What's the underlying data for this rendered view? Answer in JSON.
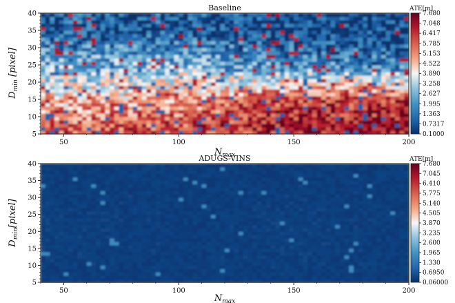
{
  "chart_data": [
    {
      "type": "heatmap",
      "title": "Baseline",
      "xlabel": "N_max",
      "ylabel": "D_min [pixel]",
      "xlim": [
        40,
        200
      ],
      "ylim": [
        5,
        40
      ],
      "x_ticks": [
        "50",
        "100",
        "150",
        "200"
      ],
      "y_ticks": [
        "5",
        "10",
        "15",
        "20",
        "25",
        "30",
        "35",
        "40"
      ],
      "colorbar_label": "ATE[m]",
      "colorbar_ticks": [
        "7.680",
        "7.048",
        "6.417",
        "5.785",
        "5.153",
        "4.522",
        "3.890",
        "3.258",
        "2.627",
        "1.995",
        "1.363",
        "0.7317",
        "0.1000"
      ],
      "colormap": [
        "#08306b",
        "#2166ac",
        "#4393c3",
        "#92c5de",
        "#f7f7f7",
        "#f4a582",
        "#d6604d",
        "#b2182b",
        "#67001f"
      ],
      "trend": "low error (blue) at high D_min / low N_max, high error (red) toward large N_max and low D_min",
      "summary_points": [
        {
          "x": 50,
          "y": 35,
          "ate": 0.9
        },
        {
          "x": 100,
          "y": 35,
          "ate": 0.8
        },
        {
          "x": 150,
          "y": 35,
          "ate": 0.5
        },
        {
          "x": 200,
          "y": 35,
          "ate": 0.4
        },
        {
          "x": 50,
          "y": 25,
          "ate": 2.5
        },
        {
          "x": 100,
          "y": 25,
          "ate": 2.8
        },
        {
          "x": 150,
          "y": 25,
          "ate": 1.8
        },
        {
          "x": 200,
          "y": 25,
          "ate": 1.5
        },
        {
          "x": 50,
          "y": 15,
          "ate": 4.5
        },
        {
          "x": 100,
          "y": 15,
          "ate": 5.0
        },
        {
          "x": 150,
          "y": 15,
          "ate": 6.3
        },
        {
          "x": 200,
          "y": 15,
          "ate": 6.5
        },
        {
          "x": 50,
          "y": 7,
          "ate": 6.0
        },
        {
          "x": 100,
          "y": 7,
          "ate": 6.2
        },
        {
          "x": 150,
          "y": 7,
          "ate": 6.9
        },
        {
          "x": 200,
          "y": 7,
          "ate": 7.2
        }
      ]
    },
    {
      "type": "heatmap",
      "title": "ADUGS-VINS",
      "xlabel": "N_max",
      "ylabel": "D_min [pixel]",
      "xlim": [
        40,
        200
      ],
      "ylim": [
        5,
        40
      ],
      "x_ticks": [
        "50",
        "100",
        "150",
        "200"
      ],
      "y_ticks": [
        "5",
        "10",
        "15",
        "20",
        "25",
        "30",
        "35",
        "40"
      ],
      "colorbar_label": "ATE[m]",
      "colorbar_ticks": [
        "7.680",
        "7.045",
        "6.410",
        "5.775",
        "5.140",
        "4.505",
        "3.870",
        "3.235",
        "2.600",
        "1.965",
        "1.330",
        "0.6950",
        "0.06000"
      ],
      "colormap": [
        "#08306b",
        "#2166ac",
        "#4393c3",
        "#92c5de",
        "#f7f7f7",
        "#f4a582",
        "#d6604d",
        "#b2182b",
        "#67001f"
      ],
      "trend": "uniformly low error (dark blue) across the whole grid",
      "summary_points": [
        {
          "x": 50,
          "y": 35,
          "ate": 0.3
        },
        {
          "x": 100,
          "y": 35,
          "ate": 0.3
        },
        {
          "x": 150,
          "y": 35,
          "ate": 0.3
        },
        {
          "x": 200,
          "y": 35,
          "ate": 0.3
        },
        {
          "x": 50,
          "y": 20,
          "ate": 0.35
        },
        {
          "x": 100,
          "y": 20,
          "ate": 0.3
        },
        {
          "x": 150,
          "y": 20,
          "ate": 0.35
        },
        {
          "x": 200,
          "y": 20,
          "ate": 0.3
        },
        {
          "x": 50,
          "y": 7,
          "ate": 0.3
        },
        {
          "x": 100,
          "y": 7,
          "ate": 0.3
        },
        {
          "x": 150,
          "y": 7,
          "ate": 0.3
        },
        {
          "x": 200,
          "y": 7,
          "ate": 0.3
        }
      ]
    }
  ]
}
